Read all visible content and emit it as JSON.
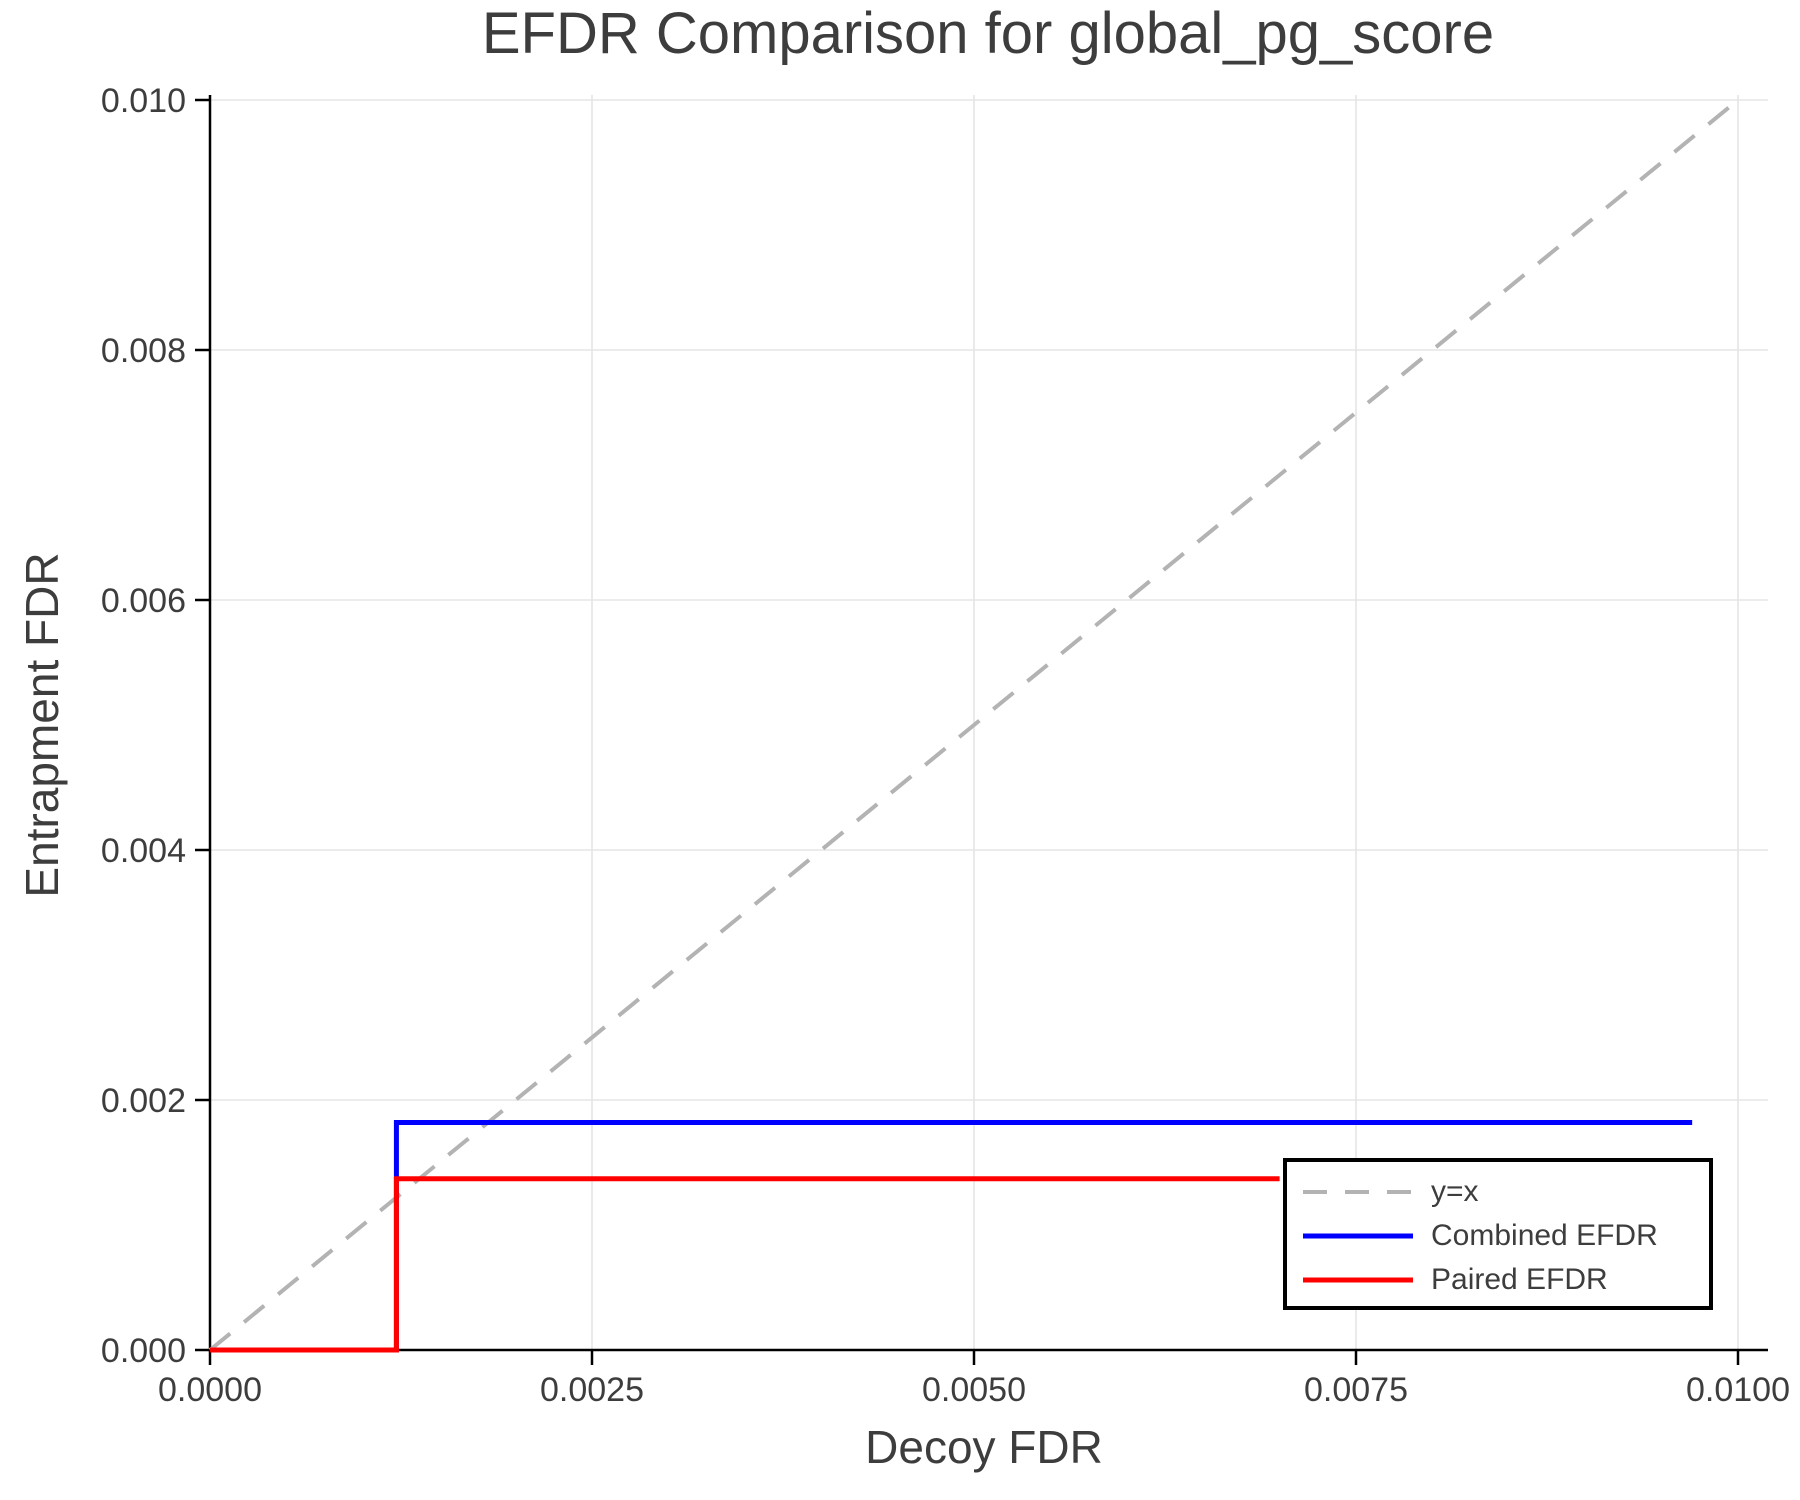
{
  "title": "EFDR Comparison for global_pg_score",
  "axes": {
    "x_label": "Decoy FDR",
    "y_label": "Entrapment FDR",
    "x_tick_labels": [
      "0.0000",
      "0.0025",
      "0.0050",
      "0.0075",
      "0.0100"
    ],
    "y_tick_labels": [
      "0.000",
      "0.002",
      "0.004",
      "0.006",
      "0.008",
      "0.010"
    ]
  },
  "colors": {
    "identity_line": "#b3b3b3",
    "combined_line": "#0000ff",
    "paired_line": "#ff0000",
    "grid": "#e5e5e5",
    "axis": "#000000",
    "text": "#3d3d3d"
  },
  "legend": {
    "entries": [
      {
        "label": "y=x",
        "color": "#b3b3b3",
        "dashed": true
      },
      {
        "label": "Combined EFDR",
        "color": "#0000ff",
        "dashed": false
      },
      {
        "label": "Paired EFDR",
        "color": "#ff0000",
        "dashed": false
      }
    ]
  },
  "chart_data": {
    "type": "line",
    "title": "EFDR Comparison for global_pg_score",
    "xlabel": "Decoy FDR",
    "ylabel": "Entrapment FDR",
    "xlim": [
      0,
      0.01
    ],
    "ylim": [
      0,
      0.01
    ],
    "x_ticks": [
      0,
      0.0025,
      0.005,
      0.0075,
      0.01
    ],
    "y_ticks": [
      0,
      0.002,
      0.004,
      0.006,
      0.008,
      0.01
    ],
    "grid": true,
    "legend_position": "lower right",
    "series": [
      {
        "name": "y=x",
        "line_style": "dashed",
        "color": "#b3b3b3",
        "points": [
          [
            0,
            0
          ],
          [
            0.01,
            0.01
          ]
        ]
      },
      {
        "name": "Combined EFDR",
        "line_style": "solid",
        "color": "#0000ff",
        "points": [
          [
            0,
            0
          ],
          [
            0.00122,
            0
          ],
          [
            0.00122,
            0.00182
          ],
          [
            0.0097,
            0.00182
          ]
        ]
      },
      {
        "name": "Paired EFDR",
        "line_style": "solid",
        "color": "#ff0000",
        "points": [
          [
            0,
            0
          ],
          [
            0.00122,
            0
          ],
          [
            0.00122,
            0.00137
          ],
          [
            0.007,
            0.00137
          ]
        ]
      }
    ]
  }
}
